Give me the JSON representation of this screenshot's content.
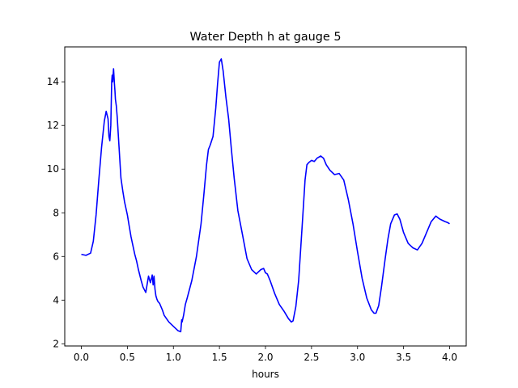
{
  "chart_data": {
    "type": "line",
    "title": "Water Depth h at gauge 5",
    "xlabel": "hours",
    "ylabel": "",
    "xlim": [
      -0.18,
      4.18
    ],
    "ylim": [
      1.9,
      15.6
    ],
    "xticks": [
      0.0,
      0.5,
      1.0,
      1.5,
      2.0,
      2.5,
      3.0,
      3.5,
      4.0
    ],
    "xtick_labels": [
      "0.0",
      "0.5",
      "1.0",
      "1.5",
      "2.0",
      "2.5",
      "3.0",
      "3.5",
      "4.0"
    ],
    "yticks": [
      2,
      4,
      6,
      8,
      10,
      12,
      14
    ],
    "ytick_labels": [
      "2",
      "4",
      "6",
      "8",
      "10",
      "12",
      "14"
    ],
    "grid": false,
    "legend": "none",
    "series": [
      {
        "color": "#0000ff",
        "x": [
          0.0,
          0.05,
          0.1,
          0.13,
          0.16,
          0.19,
          0.22,
          0.25,
          0.27,
          0.29,
          0.3,
          0.31,
          0.32,
          0.33,
          0.335,
          0.34,
          0.35,
          0.36,
          0.365,
          0.37,
          0.38,
          0.39,
          0.41,
          0.43,
          0.45,
          0.47,
          0.5,
          0.52,
          0.54,
          0.56,
          0.58,
          0.6,
          0.62,
          0.65,
          0.67,
          0.7,
          0.73,
          0.75,
          0.77,
          0.78,
          0.79,
          0.8,
          0.81,
          0.82,
          0.83,
          0.84,
          0.85,
          0.86,
          0.88,
          0.9,
          0.95,
          1.0,
          1.05,
          1.08,
          1.09,
          1.095,
          1.1,
          1.11,
          1.13,
          1.15,
          1.2,
          1.25,
          1.3,
          1.33,
          1.36,
          1.38,
          1.4,
          1.43,
          1.46,
          1.48,
          1.5,
          1.52,
          1.54,
          1.57,
          1.6,
          1.63,
          1.66,
          1.7,
          1.75,
          1.8,
          1.85,
          1.9,
          1.95,
          1.98,
          2.0,
          2.02,
          2.05,
          2.1,
          2.15,
          2.2,
          2.25,
          2.28,
          2.3,
          2.33,
          2.36,
          2.4,
          2.43,
          2.45,
          2.47,
          2.5,
          2.53,
          2.56,
          2.6,
          2.63,
          2.66,
          2.7,
          2.75,
          2.8,
          2.85,
          2.9,
          2.95,
          3.0,
          3.05,
          3.1,
          3.15,
          3.18,
          3.2,
          3.23,
          3.26,
          3.3,
          3.33,
          3.36,
          3.4,
          3.43,
          3.46,
          3.5,
          3.55,
          3.6,
          3.65,
          3.7,
          3.75,
          3.8,
          3.85,
          3.88,
          3.9,
          3.95,
          3.98,
          4.0
        ],
        "y": [
          6.1,
          6.05,
          6.15,
          6.7,
          7.9,
          9.5,
          11.0,
          12.2,
          12.65,
          12.3,
          11.5,
          11.3,
          12.0,
          14.0,
          14.3,
          14.0,
          14.6,
          13.9,
          13.6,
          13.2,
          12.9,
          12.4,
          11.0,
          9.6,
          9.0,
          8.5,
          7.9,
          7.4,
          6.9,
          6.5,
          6.1,
          5.8,
          5.4,
          4.9,
          4.6,
          4.35,
          5.1,
          4.8,
          5.15,
          4.7,
          5.1,
          4.5,
          4.2,
          4.05,
          3.95,
          3.9,
          3.85,
          3.75,
          3.55,
          3.3,
          3.0,
          2.8,
          2.6,
          2.55,
          3.1,
          3.0,
          3.1,
          3.3,
          3.8,
          4.1,
          4.9,
          6.0,
          7.5,
          8.8,
          10.2,
          10.9,
          11.1,
          11.5,
          12.8,
          13.9,
          14.9,
          15.05,
          14.5,
          13.3,
          12.3,
          10.9,
          9.6,
          8.1,
          7.0,
          5.9,
          5.4,
          5.2,
          5.4,
          5.45,
          5.25,
          5.2,
          4.9,
          4.3,
          3.8,
          3.5,
          3.15,
          3.0,
          3.05,
          3.7,
          4.9,
          7.5,
          9.5,
          10.2,
          10.3,
          10.4,
          10.35,
          10.5,
          10.6,
          10.5,
          10.2,
          9.95,
          9.75,
          9.8,
          9.5,
          8.6,
          7.5,
          6.2,
          5.0,
          4.1,
          3.55,
          3.4,
          3.4,
          3.75,
          4.6,
          5.9,
          6.8,
          7.5,
          7.9,
          7.95,
          7.7,
          7.1,
          6.6,
          6.4,
          6.3,
          6.6,
          7.1,
          7.6,
          7.85,
          7.75,
          7.7,
          7.6,
          7.55,
          7.5
        ]
      }
    ]
  }
}
